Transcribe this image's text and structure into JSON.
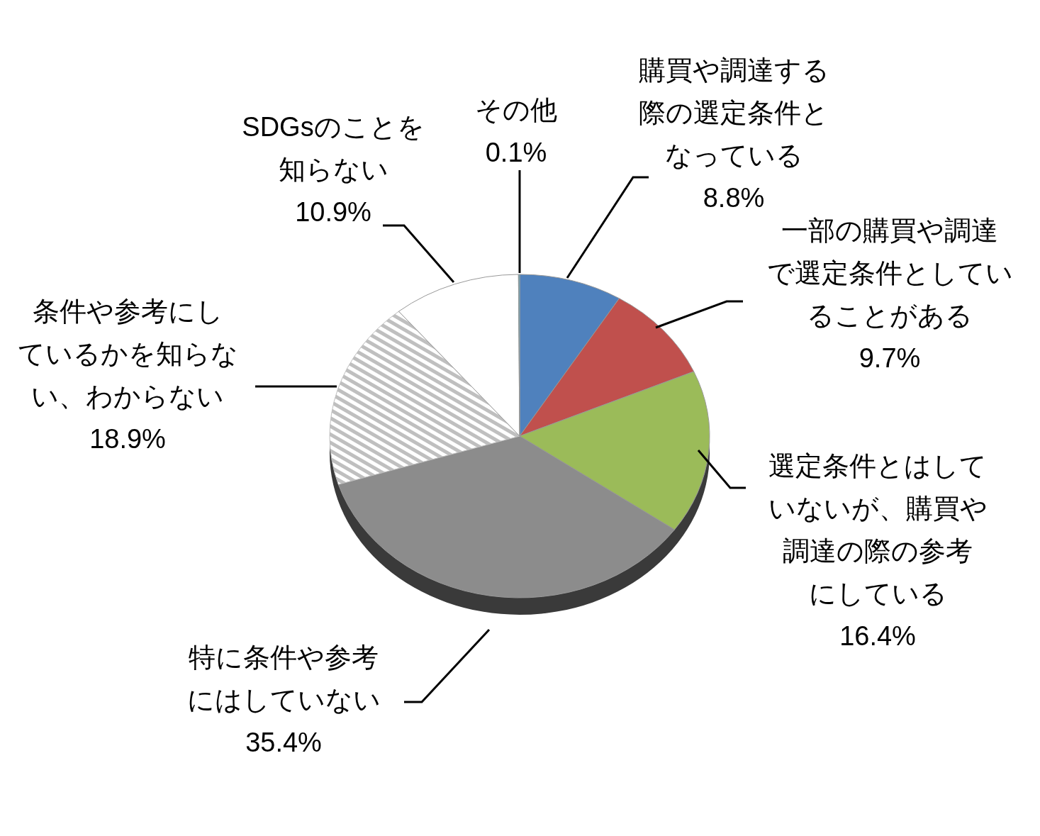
{
  "chart_data": {
    "type": "pie",
    "categories": [
      "購買や調達する際の選定条件となっている",
      "一部の購買や調達で選定条件としていることがある",
      "選定条件とはしていないが、購買や調達の際の参考にしている",
      "特に条件や参考にはしていない",
      "条件や参考にしているかを知らない、わからない",
      "SDGsのことを知らない",
      "その他"
    ],
    "values": [
      8.8,
      9.7,
      16.4,
      35.4,
      18.9,
      10.9,
      0.1
    ],
    "colors": [
      "#4f81bd",
      "#c0504d",
      "#9bbb59",
      "#8c8c8c",
      "#bfbfbf",
      "#ffffff",
      "#4bacc6"
    ],
    "value_labels": [
      "8.8%",
      "9.7%",
      "16.4%",
      "35.4%",
      "18.9%",
      "10.9%",
      "0.1%"
    ]
  }
}
